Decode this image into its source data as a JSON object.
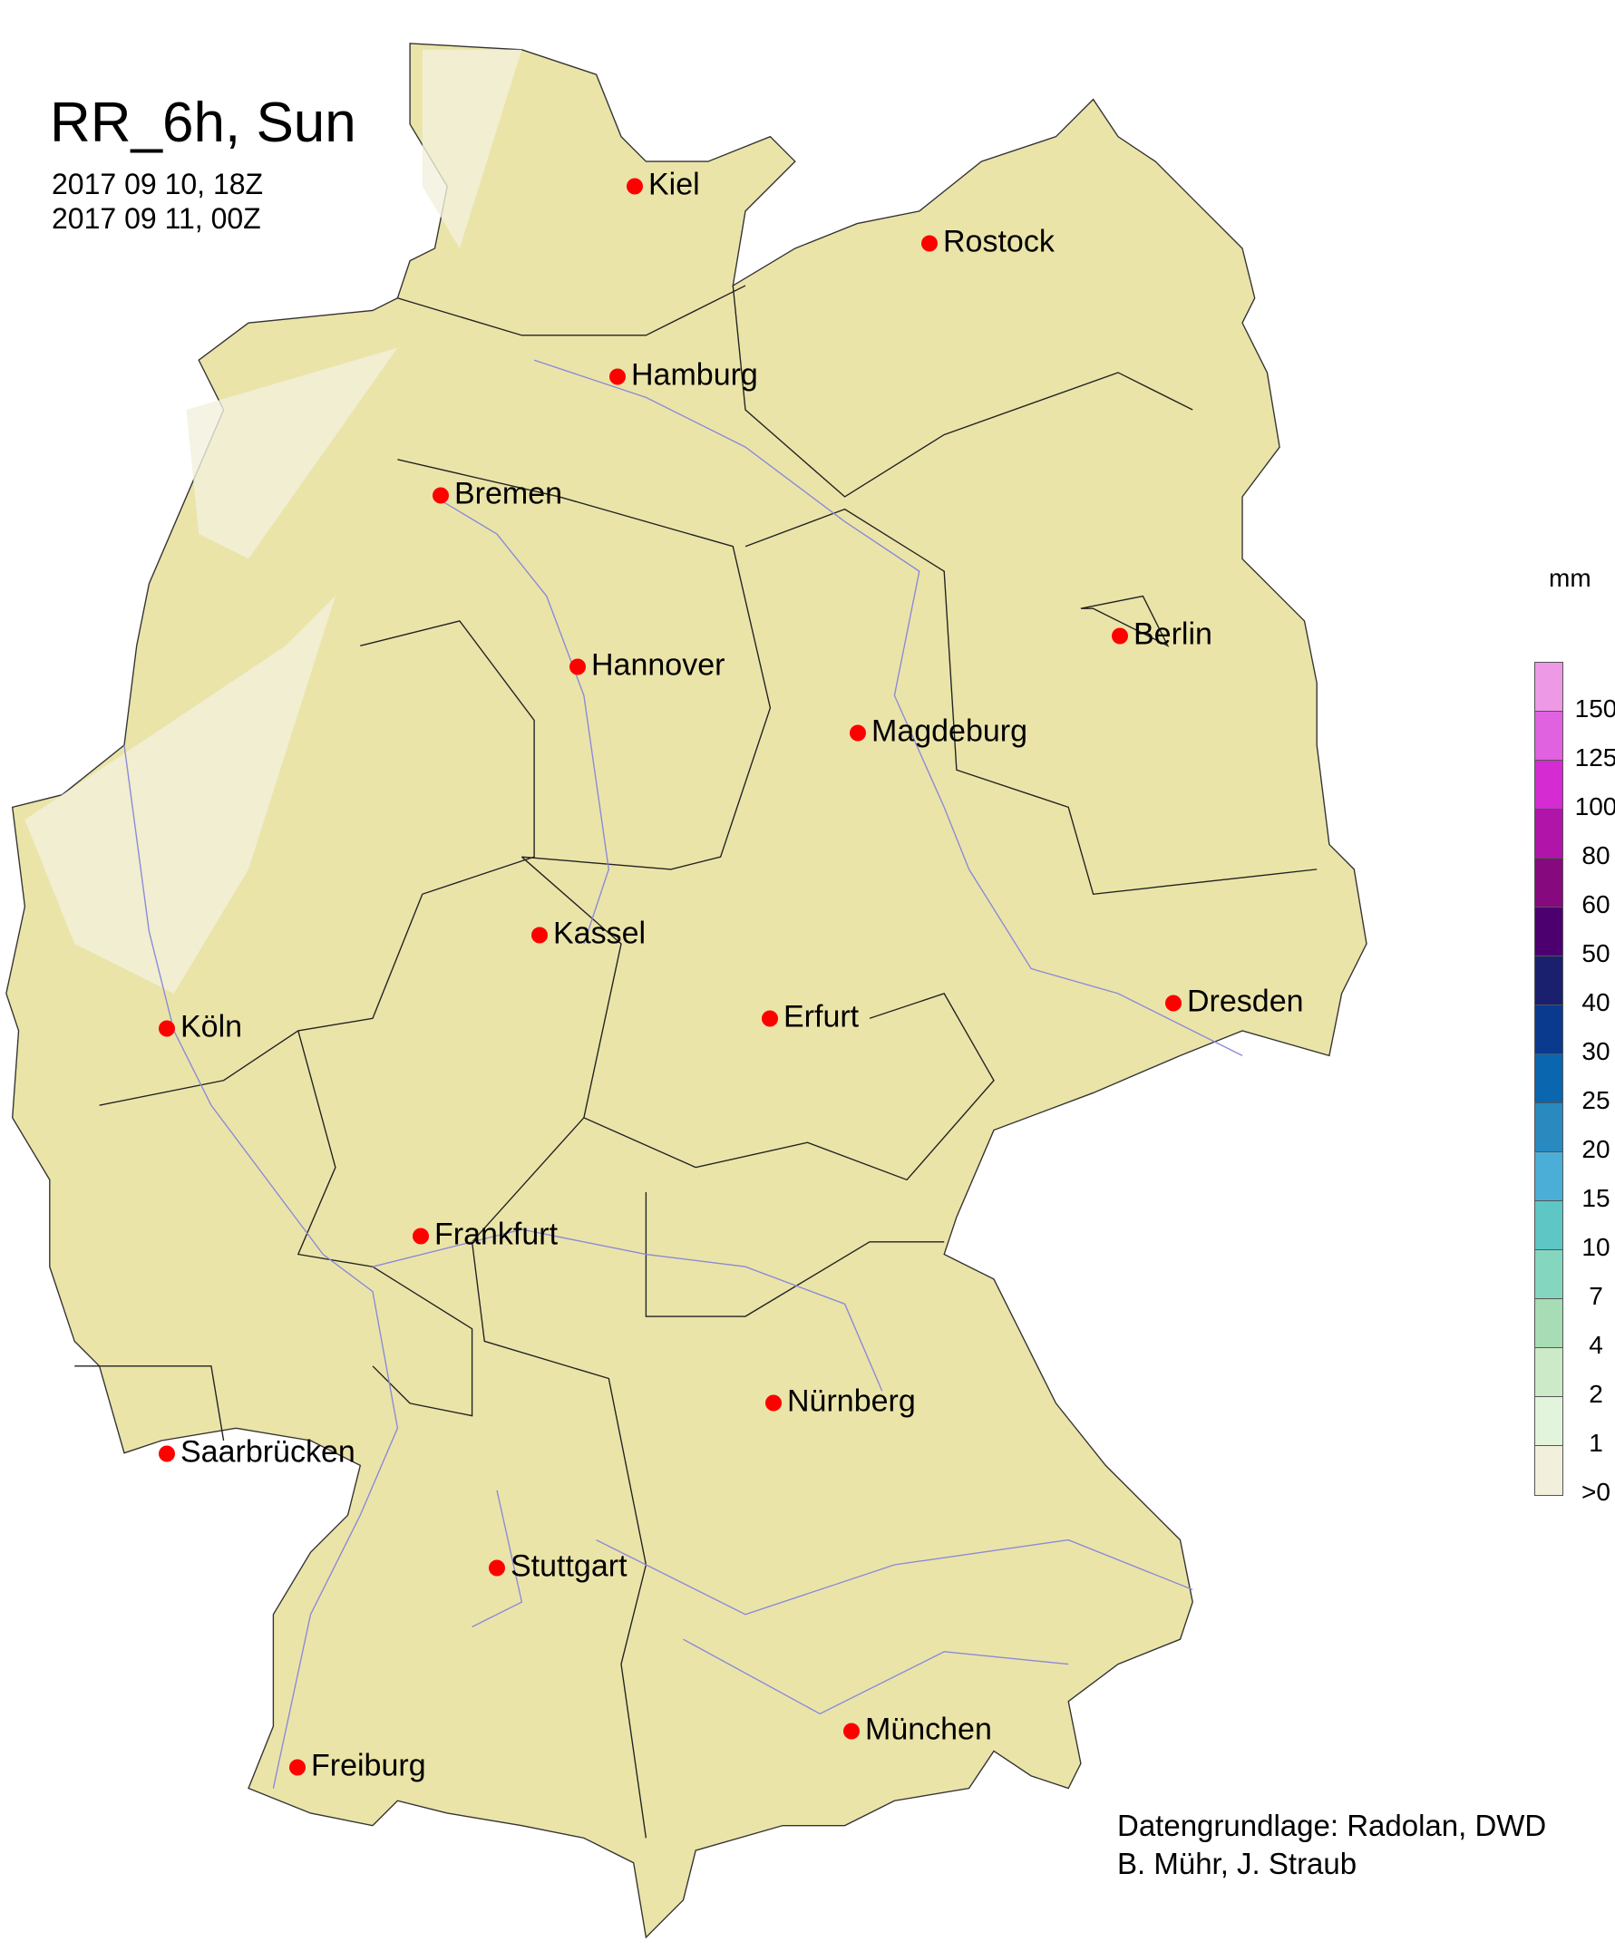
{
  "title": "RR_6h, Sun",
  "period": {
    "start": "2017 09 10, 18Z",
    "end": "2017 09 11, 00Z"
  },
  "cities": [
    "Kiel",
    "Rostock",
    "Hamburg",
    "Bremen",
    "Berlin",
    "Hannover",
    "Magdeburg",
    "Kassel",
    "Köln",
    "Erfurt",
    "Dresden",
    "Frankfurt",
    "Nürnberg",
    "Saarbrücken",
    "Stuttgart",
    "München",
    "Freiburg"
  ],
  "legend": {
    "unit": "mm",
    "labels": [
      "150",
      "125",
      "100",
      "80",
      "60",
      "50",
      "40",
      "30",
      "25",
      "20",
      "15",
      "10",
      "7",
      "4",
      "2",
      "1",
      ">0"
    ],
    "colors": [
      "#ee99e6",
      "#e062e0",
      "#d42cd2",
      "#b014a8",
      "#86097e",
      "#4c0070",
      "#1a1f6e",
      "#0a3a8e",
      "#0a66ae",
      "#2a8ac0",
      "#4aaed6",
      "#5ec6c4",
      "#84d6be",
      "#a8dcb4",
      "#cceac8",
      "#e2f4dc",
      "#f2f0dc"
    ]
  },
  "colors": {
    "land": "#ebe4a9",
    "rivers": "#8a8ad8",
    "borders": "#222222",
    "city_marker": "#ff0000"
  },
  "credit": {
    "line1": "Datengrundlage: Radolan, DWD",
    "line2": "B. Mühr, J. Straub"
  }
}
